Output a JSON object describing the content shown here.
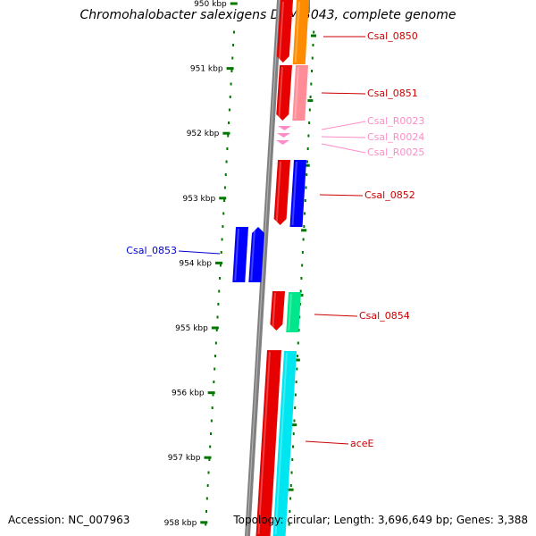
{
  "title": "Chromohalobacter salexigens DSM 3043, complete genome",
  "footer": {
    "accession": "Accession: NC_007963",
    "topology": "Topology: circular; Length: 3,696,649 bp; Genes: 3,388"
  },
  "ruler": {
    "ticks": [
      "950 kbp",
      "951 kbp",
      "952 kbp",
      "953 kbp",
      "954 kbp",
      "955 kbp",
      "956 kbp",
      "957 kbp",
      "958 kbp"
    ]
  },
  "colors": {
    "cds": "#ff0000",
    "orange": "#ff8c00",
    "pink": "#ff8c96",
    "rna": "#ff69b4",
    "blue": "#0000ff",
    "green": "#00e68c",
    "cyan": "#00e6f0",
    "tick": "#007800",
    "backbone": "#808080"
  },
  "genes": [
    {
      "label": "Csal_0850",
      "color": "#e00000",
      "start_kbp": 949.85,
      "end_kbp": 950.95
    },
    {
      "label": "Csal_0851",
      "color": "#e00000",
      "start_kbp": 950.95,
      "end_kbp": 951.8
    },
    {
      "label": "Csal_R0023",
      "color": "#ff8cc8",
      "start_kbp": 951.85,
      "end_kbp": 951.9
    },
    {
      "label": "Csal_R0024",
      "color": "#ff8cc8",
      "start_kbp": 951.97,
      "end_kbp": 952.02
    },
    {
      "label": "Csal_R0025",
      "color": "#ff8cc8",
      "start_kbp": 952.1,
      "end_kbp": 952.15
    },
    {
      "label": "Csal_0852",
      "color": "#e00000",
      "start_kbp": 952.35,
      "end_kbp": 953.35
    },
    {
      "label": "Csal_0853",
      "color": "#0000cc",
      "start_kbp": 953.4,
      "end_kbp": 954.2
    },
    {
      "label": "Csal_0854",
      "color": "#e00000",
      "start_kbp": 954.45,
      "end_kbp": 955.0
    },
    {
      "label": "aceE",
      "color": "#e00000",
      "start_kbp": 955.35,
      "end_kbp": 958.2
    }
  ]
}
